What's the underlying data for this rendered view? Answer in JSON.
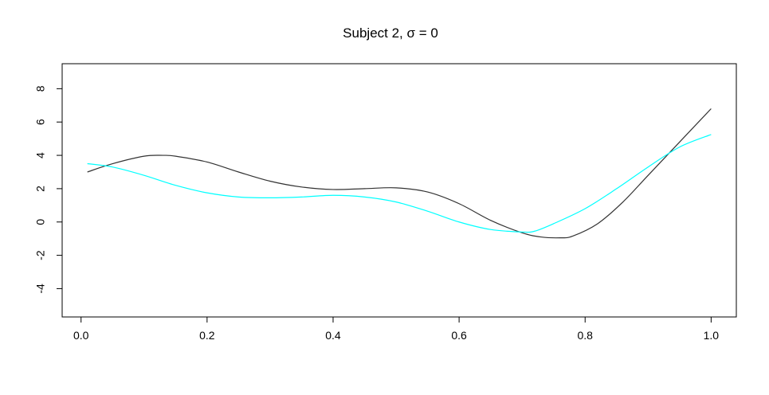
{
  "chart_data": {
    "type": "line",
    "title": "Subject 2, σ = 0",
    "xlabel": "",
    "ylabel": "",
    "xlim": [
      -0.03,
      1.04
    ],
    "ylim": [
      -5.7,
      9.5
    ],
    "x_ticks": [
      0.0,
      0.2,
      0.4,
      0.6,
      0.8,
      1.0
    ],
    "x_tick_labels": [
      "0.0",
      "0.2",
      "0.4",
      "0.6",
      "0.8",
      "1.0"
    ],
    "y_ticks": [
      -4,
      -2,
      0,
      2,
      4,
      6,
      8
    ],
    "y_tick_labels": [
      "-4",
      "-2",
      "0",
      "2",
      "4",
      "6",
      "8"
    ],
    "grid": false,
    "legend": "none",
    "series": [
      {
        "color": "#333333",
        "x": [
          0.01,
          0.05,
          0.1,
          0.13,
          0.15,
          0.2,
          0.25,
          0.3,
          0.35,
          0.4,
          0.45,
          0.5,
          0.55,
          0.6,
          0.65,
          0.7,
          0.73,
          0.76,
          0.78,
          0.82,
          0.86,
          0.9,
          0.95,
          1.0
        ],
        "y": [
          3.0,
          3.5,
          3.95,
          4.0,
          3.95,
          3.6,
          3.0,
          2.45,
          2.1,
          1.95,
          2.0,
          2.05,
          1.8,
          1.1,
          0.1,
          -0.65,
          -0.9,
          -0.95,
          -0.85,
          -0.1,
          1.2,
          2.8,
          4.8,
          6.8
        ]
      },
      {
        "color": "#00ffff",
        "x": [
          0.01,
          0.05,
          0.1,
          0.15,
          0.2,
          0.25,
          0.3,
          0.35,
          0.4,
          0.45,
          0.5,
          0.55,
          0.6,
          0.65,
          0.7,
          0.72,
          0.75,
          0.8,
          0.85,
          0.9,
          0.95,
          1.0
        ],
        "y": [
          3.5,
          3.3,
          2.8,
          2.2,
          1.75,
          1.5,
          1.45,
          1.5,
          1.6,
          1.5,
          1.2,
          0.65,
          0.0,
          -0.45,
          -0.6,
          -0.55,
          -0.1,
          0.8,
          2.0,
          3.3,
          4.5,
          5.25
        ]
      }
    ]
  }
}
